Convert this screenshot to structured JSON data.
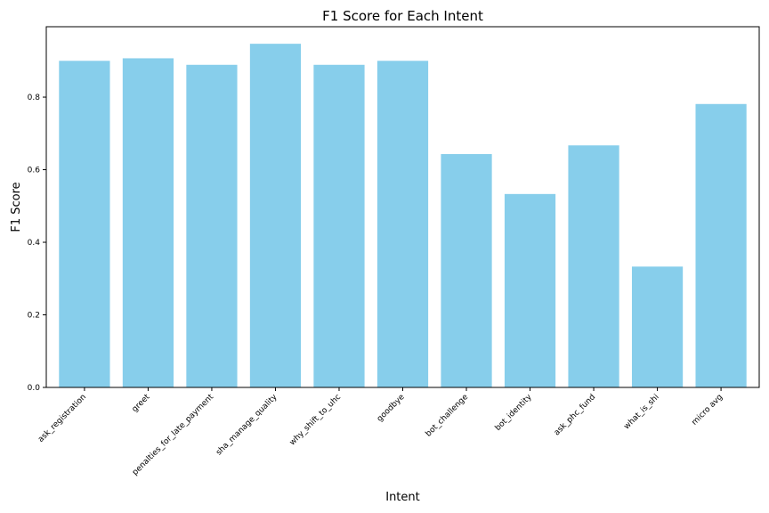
{
  "chart_data": {
    "type": "bar",
    "title": "F1 Score for Each Intent",
    "xlabel": "Intent",
    "ylabel": "F1 Score",
    "categories": [
      "ask_registration",
      "greet",
      "penalties_for_late_payment",
      "sha_manage_quality",
      "why_shift_to_uhc",
      "goodbye",
      "bot_challenge",
      "bot_identity",
      "ask_phc_fund",
      "what_is_shi",
      "micro avg"
    ],
    "values": [
      0.9,
      0.907,
      0.889,
      0.947,
      0.889,
      0.9,
      0.643,
      0.533,
      0.667,
      0.333,
      0.781
    ],
    "ylim": [
      0,
      0.994
    ],
    "yticks": [
      0.0,
      0.2,
      0.4,
      0.6,
      0.8
    ],
    "ytick_labels": [
      "0.0",
      "0.2",
      "0.4",
      "0.6",
      "0.8"
    ],
    "bar_color": "#87ceeb",
    "grid": false,
    "legend": "none"
  }
}
